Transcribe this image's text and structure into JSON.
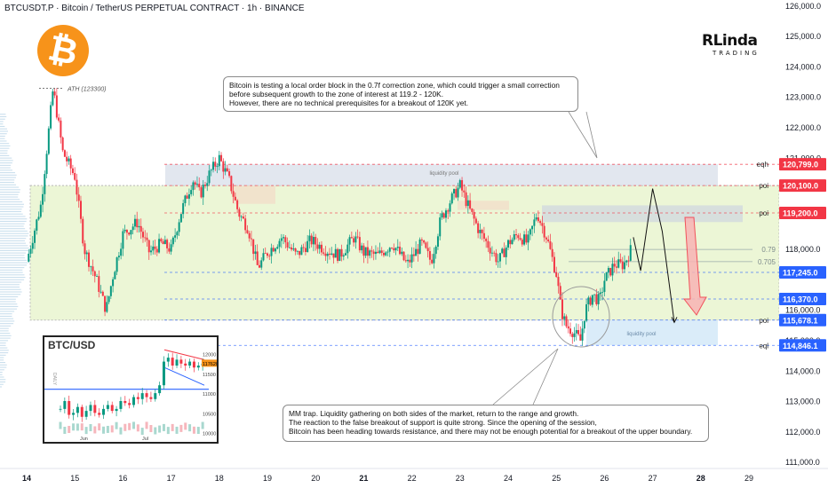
{
  "header": {
    "title": "BTCUSDT.P · Bitcoin / TetherUS PERPETUAL CONTRACT · 1h · BINANCE"
  },
  "brand": {
    "name_big": "RLinda",
    "name_small": "TRADING"
  },
  "notes": {
    "top": [
      "Bitcoin is testing a local order block in the 0.7f correction zone, which could trigger a small correction",
      "before subsequent growth to the zone of interest at 119.2 - 120K.",
      "However, there are no technical prerequisites for a breakout of 120K yet."
    ],
    "bottom": [
      "MM trap. Liquidity gathering on both sides of the market, return to the range and growth.",
      "The reaction to the false breakout of support is quite strong. Since the opening of the session,",
      "Bitcoin has been heading towards resistance, and there may not be enough potential for a breakout of the upper boundary."
    ]
  },
  "annotations": {
    "ath": "ATH (123300)",
    "liq_top": "liquidity pool",
    "liq_bottom": "liquidity pool"
  },
  "inset": {
    "title": "BTC/USD",
    "label_daily": "DAILY",
    "price_tag": "117620",
    "months": [
      "Jun",
      "Jul"
    ],
    "y_ticks": [
      "12000",
      "11500",
      "11000",
      "10500",
      "10000"
    ]
  },
  "colors": {
    "up": "#089981",
    "down": "#f23645",
    "range_fill": "#eaf5d2",
    "bitcoin": "#f7931a",
    "blue_label": "#2962ff",
    "red_label": "#f23645"
  },
  "chart_data": {
    "type": "candlestick",
    "title": "BTCUSDT.P · Bitcoin / TetherUS PERPETUAL CONTRACT · 1h · BINANCE",
    "x_ticks": [
      "14",
      "15",
      "16",
      "17",
      "18",
      "19",
      "20",
      "21",
      "22",
      "23",
      "24",
      "25",
      "26",
      "27",
      "28",
      "29"
    ],
    "y_ticks": [
      "126,000.0",
      "125,000.0",
      "124,000.0",
      "123,000.0",
      "122,000.0",
      "121,000.0",
      "118,000.0",
      "116,000.0",
      "115,000.0",
      "114,000.0",
      "113,000.0",
      "112,000.0",
      "111,000.0"
    ],
    "ylim": [
      110800,
      126200
    ],
    "price_path": [
      [
        14.0,
        117600
      ],
      [
        14.3,
        119500
      ],
      [
        14.55,
        123300
      ],
      [
        14.75,
        121200
      ],
      [
        15.0,
        120400
      ],
      [
        15.2,
        118000
      ],
      [
        15.45,
        117000
      ],
      [
        15.65,
        116000
      ],
      [
        15.8,
        117200
      ],
      [
        16.0,
        118500
      ],
      [
        16.3,
        118900
      ],
      [
        16.55,
        117900
      ],
      [
        16.8,
        118200
      ],
      [
        17.0,
        118000
      ],
      [
        17.2,
        119200
      ],
      [
        17.45,
        120300
      ],
      [
        17.6,
        119800
      ],
      [
        17.8,
        120500
      ],
      [
        18.0,
        121000
      ],
      [
        18.2,
        120300
      ],
      [
        18.4,
        119200
      ],
      [
        18.6,
        118700
      ],
      [
        18.8,
        117400
      ],
      [
        19.0,
        117900
      ],
      [
        19.3,
        118400
      ],
      [
        19.6,
        117800
      ],
      [
        19.9,
        118300
      ],
      [
        20.2,
        118000
      ],
      [
        20.5,
        117800
      ],
      [
        20.8,
        118400
      ],
      [
        21.0,
        117900
      ],
      [
        21.3,
        117800
      ],
      [
        21.6,
        118200
      ],
      [
        21.9,
        117500
      ],
      [
        22.2,
        118200
      ],
      [
        22.4,
        117600
      ],
      [
        22.6,
        119000
      ],
      [
        22.8,
        119600
      ],
      [
        23.0,
        120100
      ],
      [
        23.2,
        119300
      ],
      [
        23.4,
        118600
      ],
      [
        23.6,
        118100
      ],
      [
        23.8,
        117600
      ],
      [
        24.0,
        118200
      ],
      [
        24.2,
        118500
      ],
      [
        24.4,
        118200
      ],
      [
        24.6,
        119200
      ],
      [
        24.8,
        118400
      ],
      [
        25.0,
        117200
      ],
      [
        25.1,
        116000
      ],
      [
        25.2,
        115500
      ],
      [
        25.35,
        115300
      ],
      [
        25.5,
        115000
      ],
      [
        25.6,
        116000
      ],
      [
        25.75,
        116500
      ],
      [
        25.9,
        116300
      ],
      [
        26.0,
        117000
      ],
      [
        26.2,
        117500
      ],
      [
        26.4,
        117500
      ],
      [
        26.55,
        118000
      ]
    ],
    "projection": [
      [
        26.6,
        118400
      ],
      [
        26.75,
        117300
      ],
      [
        27.0,
        120000
      ],
      [
        27.2,
        118600
      ],
      [
        27.45,
        115600
      ]
    ],
    "price_labels": [
      {
        "tag": "eqh",
        "value": "120,799.0",
        "color": "#f23645"
      },
      {
        "tag": "poi",
        "value": "120,100.0",
        "color": "#f23645"
      },
      {
        "tag": "poi",
        "value": "119,200.0",
        "color": "#f23645"
      },
      {
        "tag": "",
        "value": "117,245.0",
        "color": "#2962ff"
      },
      {
        "tag": "",
        "value": "116,370.0",
        "color": "#2962ff"
      },
      {
        "tag": "poi",
        "value": "115,678.1",
        "color": "#2962ff"
      },
      {
        "tag": "eql",
        "value": "114,846.1",
        "color": "#2962ff"
      }
    ],
    "fib_levels": [
      {
        "label": "0.79",
        "value": 118000
      },
      {
        "label": "0.705",
        "value": 117600
      }
    ],
    "range_zone": [
      115678,
      120100
    ],
    "liquidity_top": [
      120100,
      120799
    ],
    "liquidity_bottom": [
      114846,
      115678
    ],
    "ath": 123300
  }
}
